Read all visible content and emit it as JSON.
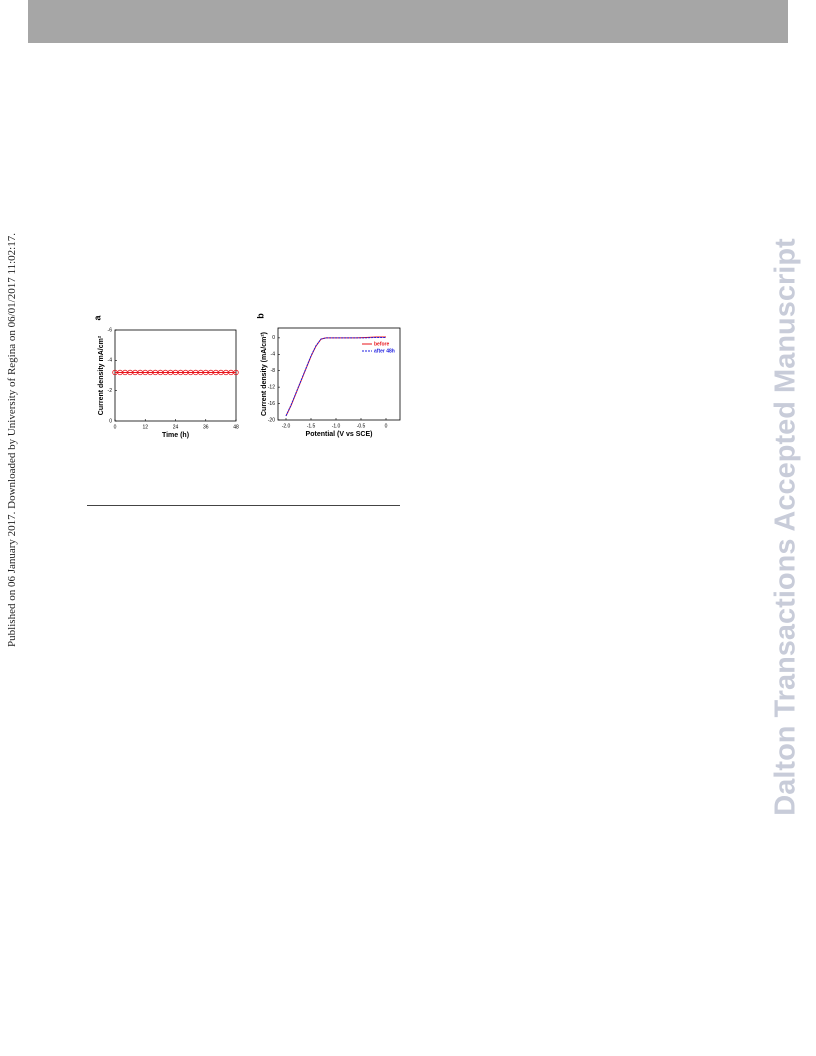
{
  "side_note": "Published on 06 January 2017. Downloaded by University of Regina on 06/01/2017 11:02:17.",
  "watermark": "Dalton Transactions Accepted Manuscript",
  "charts": [
    {
      "panel": "a",
      "type": "scatter",
      "xlabel": "Time (h)",
      "ylabel": "Current density mA/cm²",
      "xlim": [
        0,
        48
      ],
      "xticks": [
        0,
        12,
        24,
        36,
        48
      ],
      "ylim": [
        0,
        -6
      ],
      "yticks": [
        -6,
        -4,
        -2,
        0
      ],
      "series": [
        {
          "color": "#e8141b",
          "x": [
            0,
            2,
            4,
            6,
            8,
            10,
            12,
            14,
            16,
            18,
            20,
            22,
            24,
            26,
            28,
            30,
            32,
            34,
            36,
            38,
            40,
            42,
            44,
            46,
            48
          ],
          "values": [
            -3.2,
            -3.2,
            -3.2,
            -3.2,
            -3.2,
            -3.2,
            -3.2,
            -3.2,
            -3.2,
            -3.2,
            -3.2,
            -3.2,
            -3.2,
            -3.2,
            -3.2,
            -3.2,
            -3.2,
            -3.2,
            -3.2,
            -3.2,
            -3.2,
            -3.2,
            -3.2,
            -3.2,
            -3.2
          ]
        }
      ]
    },
    {
      "panel": "b",
      "type": "line",
      "xlabel": "Potential (V vs SCE)",
      "ylabel": "Current density (mA/cm²)",
      "xlim": [
        -2.16,
        0.28
      ],
      "xticks": [
        {
          "value": -2,
          "label": "-2.0"
        },
        -1.5,
        {
          "value": -1,
          "label": "-1.0"
        },
        -0.5,
        0
      ],
      "ylim": [
        -20,
        2.4
      ],
      "yticks": [
        0,
        -4,
        -8,
        -12,
        -16,
        -20
      ],
      "legend": "upper right",
      "series": [
        {
          "name": "before",
          "color": "#e8141b",
          "dash": false,
          "x": [
            -2.0,
            -1.9,
            -1.8,
            -1.7,
            -1.6,
            -1.5,
            -1.4,
            -1.3,
            -1.2,
            -1.0,
            -0.8,
            -0.6,
            -0.4,
            -0.2,
            0.0
          ],
          "values": [
            -19,
            -16.5,
            -13.5,
            -10.5,
            -7.5,
            -4.5,
            -2,
            -0.3,
            0,
            0,
            0,
            0,
            0.1,
            0.2,
            0.2
          ]
        },
        {
          "name": "after 48h",
          "color": "#1f1fe0",
          "dash": true,
          "x": [
            -2.0,
            -1.9,
            -1.8,
            -1.7,
            -1.6,
            -1.5,
            -1.4,
            -1.3,
            -1.2,
            -1.0,
            -0.8,
            -0.6,
            -0.4,
            -0.2,
            0.0
          ],
          "values": [
            -19,
            -16.4,
            -13.4,
            -10.4,
            -7.4,
            -4.4,
            -1.9,
            -0.3,
            0,
            0,
            0,
            0,
            0,
            0.1,
            0.1
          ]
        }
      ]
    }
  ]
}
